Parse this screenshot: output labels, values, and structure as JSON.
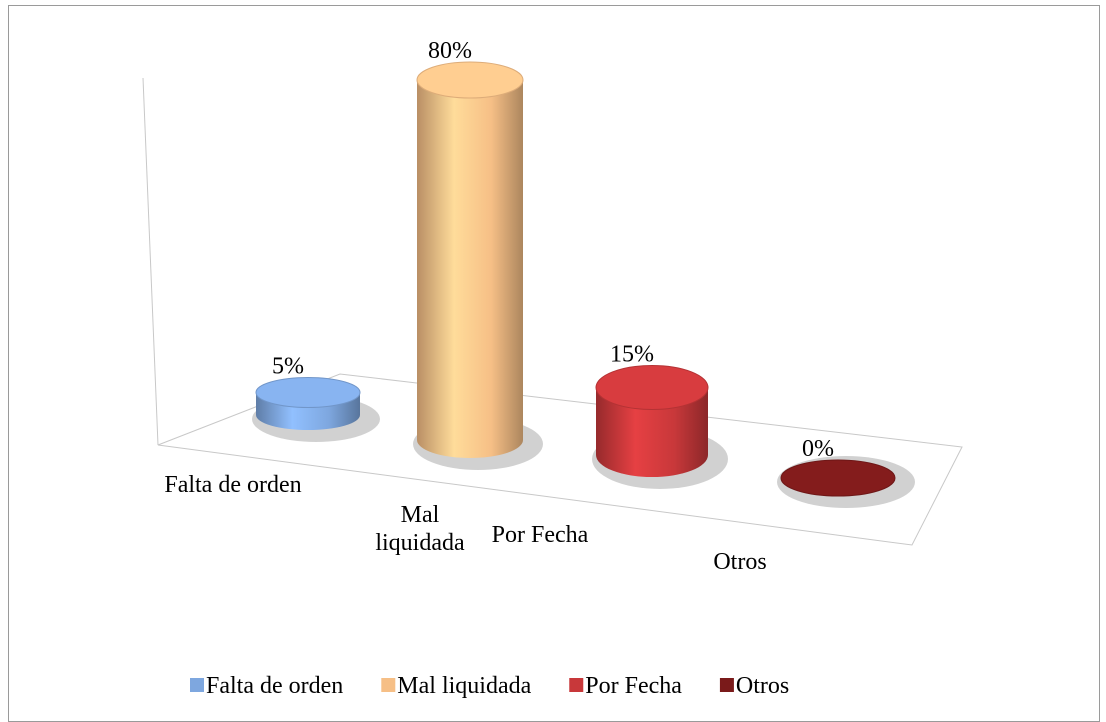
{
  "chart_data": {
    "type": "bar3d",
    "categories": [
      "Falta de orden",
      "Mal liquidada",
      "Por Fecha",
      "Otros"
    ],
    "values": [
      5,
      80,
      15,
      0
    ],
    "value_labels": [
      "5%",
      "80%",
      "15%",
      "0%"
    ],
    "colors": [
      "#7ea7df",
      "#f6bf86",
      "#c8383a",
      "#7a1a1a"
    ],
    "legend": "bottom"
  }
}
